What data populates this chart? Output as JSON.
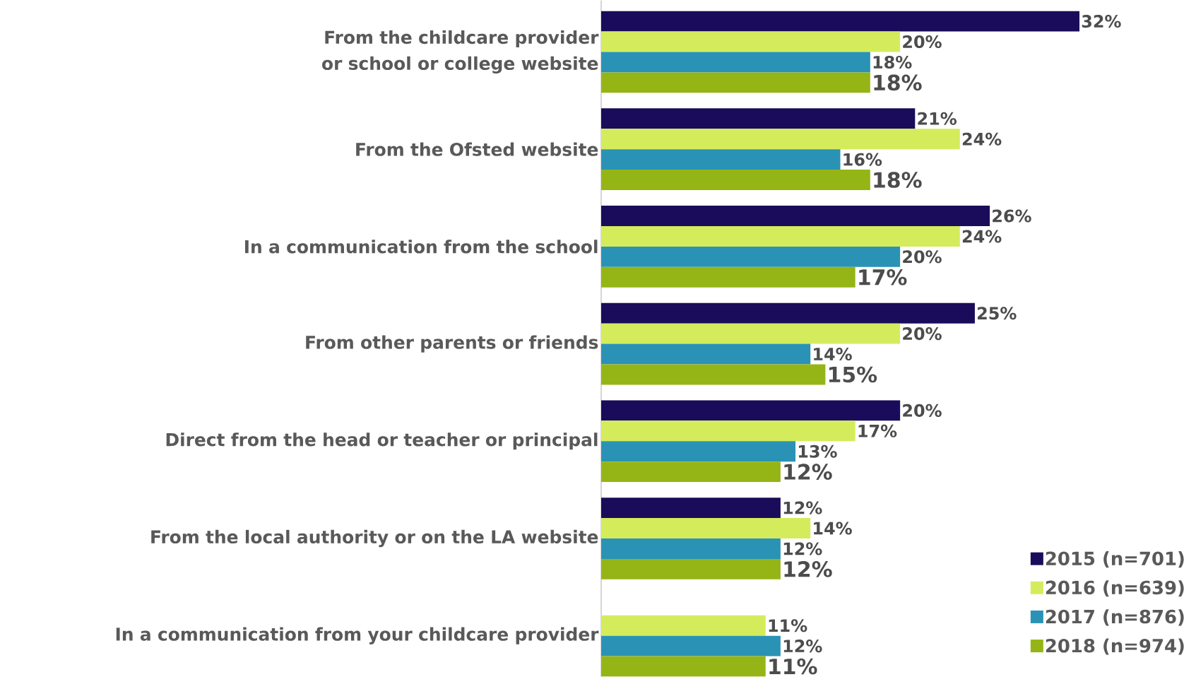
{
  "chart_data": {
    "type": "bar",
    "orientation": "horizontal",
    "categories": [
      "From the childcare provider or school or college website",
      "From the Ofsted website",
      "In a communication from the school",
      "From  other parents or friends",
      "Direct from the head or teacher or principal",
      "From the local authority or on the LA website",
      "In a communication from your childcare provider"
    ],
    "series": [
      {
        "name": "2015 (n=701)",
        "color": "#1a0c5a",
        "values": [
          32,
          21,
          26,
          25,
          20,
          12,
          null
        ],
        "value_labels": [
          "32%",
          "21%",
          "26%",
          "25%",
          "20%",
          "12%",
          null
        ]
      },
      {
        "name": "2016 (n=639)",
        "color": "#d4ec5c",
        "values": [
          20,
          24,
          24,
          20,
          17,
          14,
          11
        ],
        "value_labels": [
          "20%",
          "24%",
          "24%",
          "20%",
          "17%",
          "14%",
          "11%"
        ]
      },
      {
        "name": "2017 (n=876)",
        "color": "#2a93b5",
        "values": [
          18,
          16,
          20,
          14,
          13,
          12,
          12
        ],
        "value_labels": [
          "18%",
          "16%",
          "20%",
          "14%",
          "13%",
          "12%",
          "12%"
        ]
      },
      {
        "name": "2018 (n=974)",
        "color": "#95b516",
        "values": [
          18,
          18,
          17,
          15,
          12,
          12,
          11
        ],
        "value_labels": [
          "18%",
          "18%",
          "17%",
          "15%",
          "12%",
          "12%",
          "11%"
        ]
      }
    ],
    "legend": "bottom right"
  }
}
